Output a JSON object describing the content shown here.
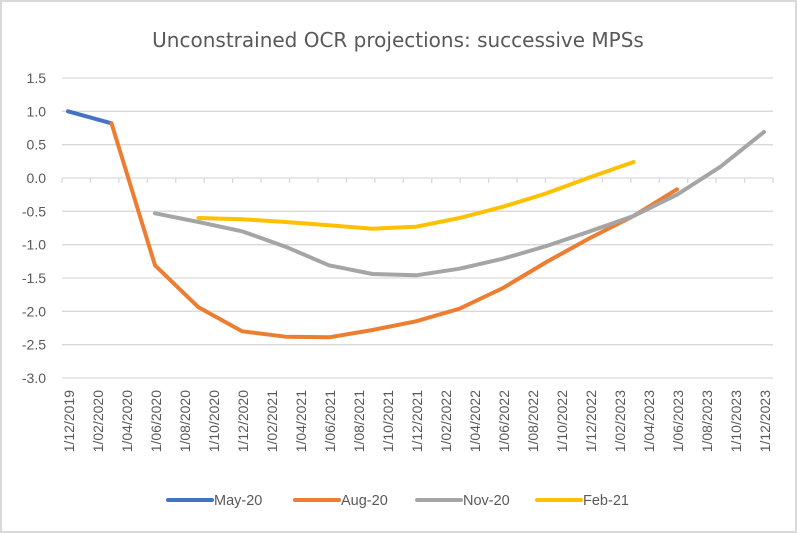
{
  "chart_data": {
    "type": "line",
    "title": "Unconstrained OCR projections: successive MPSs",
    "xlabel": "",
    "ylabel": "",
    "ylim": [
      -3.0,
      1.5
    ],
    "ytick_step": 0.5,
    "yticks": [
      "1.5",
      "1.0",
      "0.5",
      "0.0",
      "-0.5",
      "-1.0",
      "-1.5",
      "-2.0",
      "-2.5",
      "-3.0"
    ],
    "x_axis_type": "date (months)",
    "x_range": [
      "1/12/2019",
      "1/12/2023"
    ],
    "xticks": [
      "1/12/2019",
      "1/02/2020",
      "1/04/2020",
      "1/06/2020",
      "1/08/2020",
      "1/10/2020",
      "1/12/2020",
      "1/02/2021",
      "1/04/2021",
      "1/06/2021",
      "1/08/2021",
      "1/10/2021",
      "1/12/2021",
      "1/02/2022",
      "1/04/2022",
      "1/06/2022",
      "1/08/2022",
      "1/10/2022",
      "1/12/2022",
      "1/02/2023",
      "1/04/2023",
      "1/06/2023",
      "1/08/2023",
      "1/10/2023",
      "1/12/2023"
    ],
    "grid": true,
    "legend_position": "bottom",
    "series": [
      {
        "name": "May-20",
        "color": "#4472c4",
        "points": [
          {
            "x": "1/12/2019",
            "y": 1.0
          },
          {
            "x": "1/03/2020",
            "y": 0.82
          }
        ]
      },
      {
        "name": "Aug-20",
        "color": "#ed7d31",
        "points": [
          {
            "x": "1/03/2020",
            "y": 0.82
          },
          {
            "x": "1/06/2020",
            "y": -1.31
          },
          {
            "x": "1/09/2020",
            "y": -1.94
          },
          {
            "x": "1/12/2020",
            "y": -2.3
          },
          {
            "x": "1/03/2021",
            "y": -2.38
          },
          {
            "x": "1/06/2021",
            "y": -2.39
          },
          {
            "x": "1/09/2021",
            "y": -2.28
          },
          {
            "x": "1/12/2021",
            "y": -2.15
          },
          {
            "x": "1/03/2022",
            "y": -1.96
          },
          {
            "x": "1/06/2022",
            "y": -1.65
          },
          {
            "x": "1/09/2022",
            "y": -1.26
          },
          {
            "x": "1/12/2022",
            "y": -0.9
          },
          {
            "x": "1/03/2023",
            "y": -0.57
          },
          {
            "x": "1/06/2023",
            "y": -0.17
          }
        ]
      },
      {
        "name": "Nov-20",
        "color": "#a5a5a5",
        "points": [
          {
            "x": "1/06/2020",
            "y": -0.53
          },
          {
            "x": "1/09/2020",
            "y": -0.66
          },
          {
            "x": "1/12/2020",
            "y": -0.8
          },
          {
            "x": "1/03/2021",
            "y": -1.03
          },
          {
            "x": "1/06/2021",
            "y": -1.31
          },
          {
            "x": "1/09/2021",
            "y": -1.44
          },
          {
            "x": "1/12/2021",
            "y": -1.46
          },
          {
            "x": "1/03/2022",
            "y": -1.36
          },
          {
            "x": "1/06/2022",
            "y": -1.21
          },
          {
            "x": "1/09/2022",
            "y": -1.02
          },
          {
            "x": "1/12/2022",
            "y": -0.8
          },
          {
            "x": "1/03/2023",
            "y": -0.57
          },
          {
            "x": "1/06/2023",
            "y": -0.25
          },
          {
            "x": "1/09/2023",
            "y": 0.17
          },
          {
            "x": "1/12/2023",
            "y": 0.69
          }
        ]
      },
      {
        "name": "Feb-21",
        "color": "#ffc000",
        "points": [
          {
            "x": "1/09/2020",
            "y": -0.6
          },
          {
            "x": "1/12/2020",
            "y": -0.62
          },
          {
            "x": "1/03/2021",
            "y": -0.66
          },
          {
            "x": "1/06/2021",
            "y": -0.71
          },
          {
            "x": "1/09/2021",
            "y": -0.76
          },
          {
            "x": "1/12/2021",
            "y": -0.73
          },
          {
            "x": "1/03/2022",
            "y": -0.6
          },
          {
            "x": "1/06/2022",
            "y": -0.43
          },
          {
            "x": "1/09/2022",
            "y": -0.23
          },
          {
            "x": "1/12/2022",
            "y": 0.01
          },
          {
            "x": "1/03/2023",
            "y": 0.24
          }
        ]
      }
    ]
  }
}
